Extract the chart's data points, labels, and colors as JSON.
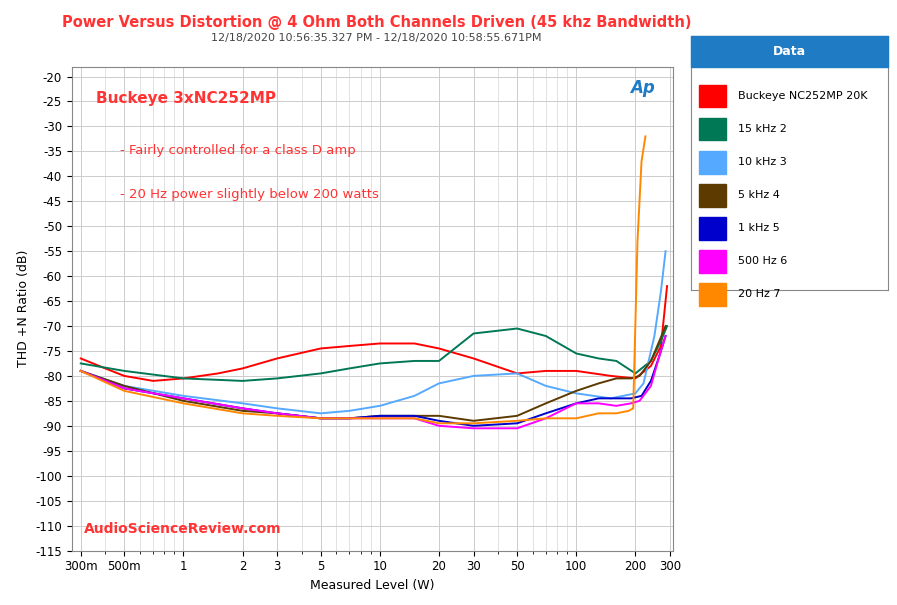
{
  "title_line1": "Power Versus Distortion @ 4 Ohm Both Channels Driven (45 khz Bandwidth)",
  "title_line2": "12/18/2020 10:56:35.327 PM - 12/18/2020 10:58:55.671PM",
  "xlabel": "Measured Level (W)",
  "ylabel": "THD +N Ratio (dB)",
  "watermark": "AudioScienceReview.com",
  "annotation1": "Buckeye 3xNC252MP",
  "annotation2": "- Fairly controlled for a class D amp",
  "annotation3": "- 20 Hz power slightly below 200 watts",
  "title_color": "#FF3333",
  "title2_color": "#444444",
  "watermark_color": "#FF3333",
  "annotation_color": "#FF3333",
  "background_color": "#FFFFFF",
  "plot_bg_color": "#FFFFFF",
  "grid_color": "#CCCCCC",
  "legend_title": "Data",
  "legend_title_bg": "#1E7BC4",
  "series": [
    {
      "label": "Buckeye NC252MP 20K",
      "color": "#FF0000",
      "x": [
        0.3,
        0.4,
        0.5,
        0.7,
        1.0,
        1.5,
        2.0,
        3.0,
        5.0,
        7.0,
        10.0,
        15.0,
        20.0,
        30.0,
        50.0,
        70.0,
        100.0,
        150.0,
        200.0,
        240.0,
        270.0,
        290.0
      ],
      "y": [
        -76.5,
        -78.5,
        -80.0,
        -81.0,
        -80.5,
        -79.5,
        -78.5,
        -76.5,
        -74.5,
        -74.0,
        -73.5,
        -73.5,
        -74.5,
        -76.5,
        -79.5,
        -79.0,
        -79.0,
        -80.0,
        -80.5,
        -78.0,
        -74.0,
        -62.0
      ]
    },
    {
      "label": "15 kHz 2",
      "color": "#007755",
      "x": [
        0.3,
        0.5,
        1.0,
        2.0,
        3.0,
        5.0,
        7.0,
        10.0,
        15.0,
        20.0,
        30.0,
        50.0,
        70.0,
        100.0,
        130.0,
        160.0,
        200.0,
        240.0,
        270.0,
        290.0
      ],
      "y": [
        -77.5,
        -79.0,
        -80.5,
        -81.0,
        -80.5,
        -79.5,
        -78.5,
        -77.5,
        -77.0,
        -77.0,
        -71.5,
        -70.5,
        -72.0,
        -75.5,
        -76.5,
        -77.0,
        -79.5,
        -77.0,
        -73.0,
        -70.0
      ]
    },
    {
      "label": "10 kHz 3",
      "color": "#55AAFF",
      "x": [
        0.3,
        0.5,
        1.0,
        2.0,
        3.0,
        5.0,
        7.0,
        10.0,
        15.0,
        20.0,
        30.0,
        50.0,
        70.0,
        100.0,
        150.0,
        200.0,
        220.0,
        250.0,
        270.0,
        285.0
      ],
      "y": [
        -79.0,
        -82.0,
        -84.0,
        -85.5,
        -86.5,
        -87.5,
        -87.0,
        -86.0,
        -84.0,
        -81.5,
        -80.0,
        -79.5,
        -82.0,
        -83.5,
        -84.5,
        -83.5,
        -81.5,
        -72.0,
        -63.0,
        -55.0
      ]
    },
    {
      "label": "5 kHz 4",
      "color": "#5C3A00",
      "x": [
        0.3,
        0.5,
        1.0,
        2.0,
        3.0,
        5.0,
        7.0,
        10.0,
        15.0,
        20.0,
        30.0,
        50.0,
        70.0,
        100.0,
        130.0,
        160.0,
        190.0,
        210.0,
        240.0,
        265.0,
        285.0
      ],
      "y": [
        -79.0,
        -82.0,
        -85.0,
        -87.0,
        -87.5,
        -88.5,
        -88.5,
        -88.0,
        -88.0,
        -88.0,
        -89.0,
        -88.0,
        -85.5,
        -83.0,
        -81.5,
        -80.5,
        -80.5,
        -80.0,
        -77.0,
        -73.0,
        -70.0
      ]
    },
    {
      "label": "1 kHz 5",
      "color": "#0000CC",
      "x": [
        0.3,
        0.5,
        1.0,
        2.0,
        3.0,
        5.0,
        7.0,
        10.0,
        15.0,
        20.0,
        30.0,
        50.0,
        70.0,
        100.0,
        130.0,
        160.0,
        190.0,
        215.0,
        240.0,
        265.0,
        285.0
      ],
      "y": [
        -79.0,
        -82.5,
        -84.5,
        -86.5,
        -87.5,
        -88.5,
        -88.5,
        -88.0,
        -88.0,
        -89.0,
        -90.0,
        -89.5,
        -87.5,
        -85.5,
        -84.5,
        -84.5,
        -84.5,
        -84.0,
        -81.0,
        -76.0,
        -72.0
      ]
    },
    {
      "label": "500 Hz 6",
      "color": "#FF00FF",
      "x": [
        0.3,
        0.5,
        1.0,
        2.0,
        3.0,
        5.0,
        7.0,
        10.0,
        15.0,
        20.0,
        30.0,
        50.0,
        70.0,
        100.0,
        130.0,
        160.0,
        190.0,
        210.0,
        240.0,
        265.0,
        285.0
      ],
      "y": [
        -79.0,
        -82.5,
        -84.5,
        -86.5,
        -87.5,
        -88.5,
        -88.5,
        -88.5,
        -88.5,
        -90.0,
        -90.5,
        -90.5,
        -88.5,
        -85.5,
        -85.5,
        -86.0,
        -85.5,
        -85.0,
        -82.0,
        -76.0,
        -72.0
      ]
    },
    {
      "label": "20 Hz 7",
      "color": "#FF8800",
      "x": [
        0.3,
        0.5,
        1.0,
        2.0,
        3.0,
        5.0,
        7.0,
        10.0,
        15.0,
        20.0,
        30.0,
        50.0,
        70.0,
        100.0,
        130.0,
        160.0,
        185.0,
        195.0,
        205.0,
        215.0,
        225.0
      ],
      "y": [
        -79.0,
        -83.0,
        -85.5,
        -87.5,
        -88.0,
        -88.5,
        -88.5,
        -88.5,
        -88.5,
        -89.5,
        -89.5,
        -89.0,
        -88.5,
        -88.5,
        -87.5,
        -87.5,
        -87.0,
        -86.5,
        -53.0,
        -37.0,
        -32.0
      ]
    }
  ],
  "xmin": 0.27,
  "xmax": 310.0,
  "ymin": -115,
  "ymax": -18,
  "xticks_labels": [
    "300m",
    "500m",
    "1",
    "2",
    "3",
    "5",
    "10",
    "20",
    "30",
    "50",
    "100",
    "200",
    "300"
  ],
  "xticks_values": [
    0.3,
    0.5,
    1.0,
    2.0,
    3.0,
    5.0,
    10.0,
    20.0,
    30.0,
    50.0,
    100.0,
    200.0,
    300.0
  ],
  "yticks": [
    -20,
    -25,
    -30,
    -35,
    -40,
    -45,
    -50,
    -55,
    -60,
    -65,
    -70,
    -75,
    -80,
    -85,
    -90,
    -95,
    -100,
    -105,
    -110,
    -115
  ]
}
